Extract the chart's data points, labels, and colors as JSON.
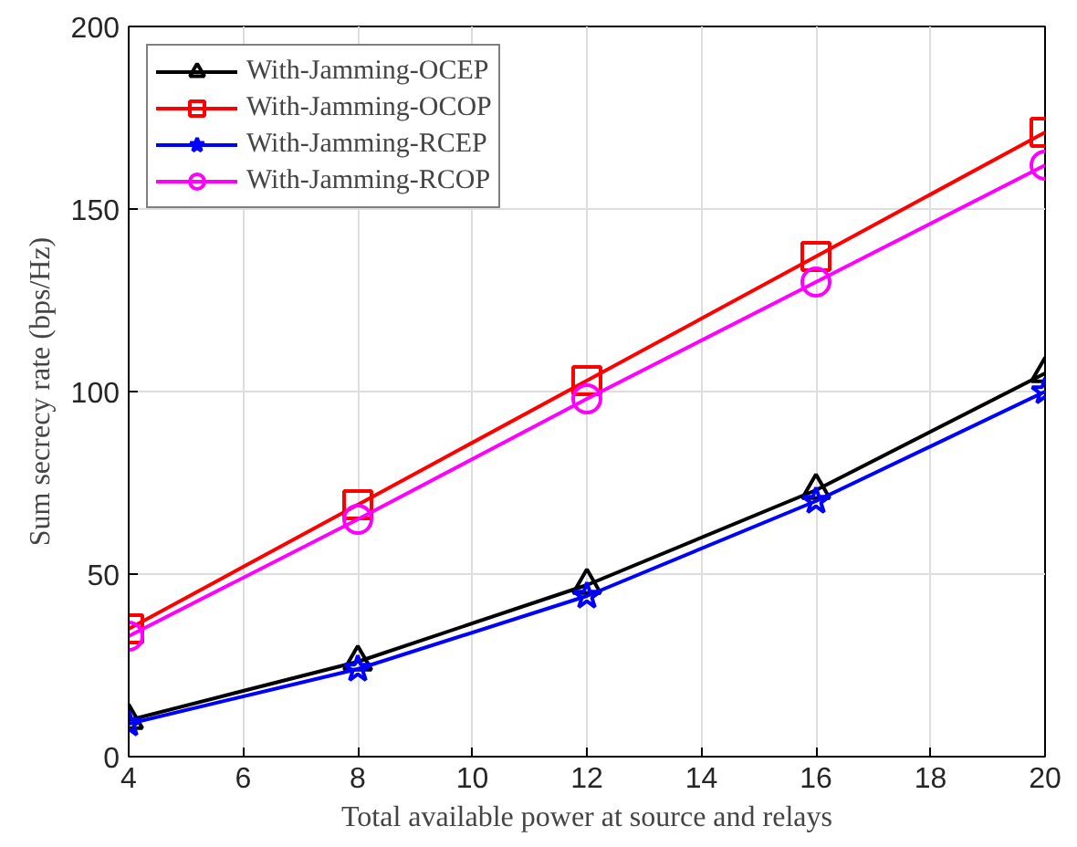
{
  "chart_data": {
    "type": "line",
    "xlabel": "Total available power at source and relays",
    "ylabel": "Sum secrecy rate (bps/Hz)",
    "x": [
      4,
      8,
      12,
      16,
      20
    ],
    "series": [
      {
        "name": "With-Jamming-OCEP",
        "color": "#000000",
        "marker": "triangle",
        "values": [
          10,
          26,
          47,
          73,
          105
        ]
      },
      {
        "name": "With-Jamming-OCOP",
        "color": "#ff0000",
        "marker": "square",
        "values": [
          35,
          69,
          103,
          137,
          171
        ]
      },
      {
        "name": "With-Jamming-RCEP",
        "color": "#0000ff",
        "marker": "star",
        "values": [
          9,
          24,
          44,
          70,
          100
        ]
      },
      {
        "name": "With-Jamming-RCOP",
        "color": "#ff00ff",
        "marker": "circle",
        "values": [
          33,
          65,
          98,
          130,
          162
        ]
      }
    ],
    "xlim": [
      4,
      20
    ],
    "ylim": [
      0,
      200
    ],
    "xticks": [
      4,
      6,
      8,
      10,
      12,
      14,
      16,
      18,
      20
    ],
    "yticks": [
      0,
      50,
      100,
      150,
      200
    ],
    "grid": true,
    "legend": "top left",
    "line_style": "solid"
  }
}
